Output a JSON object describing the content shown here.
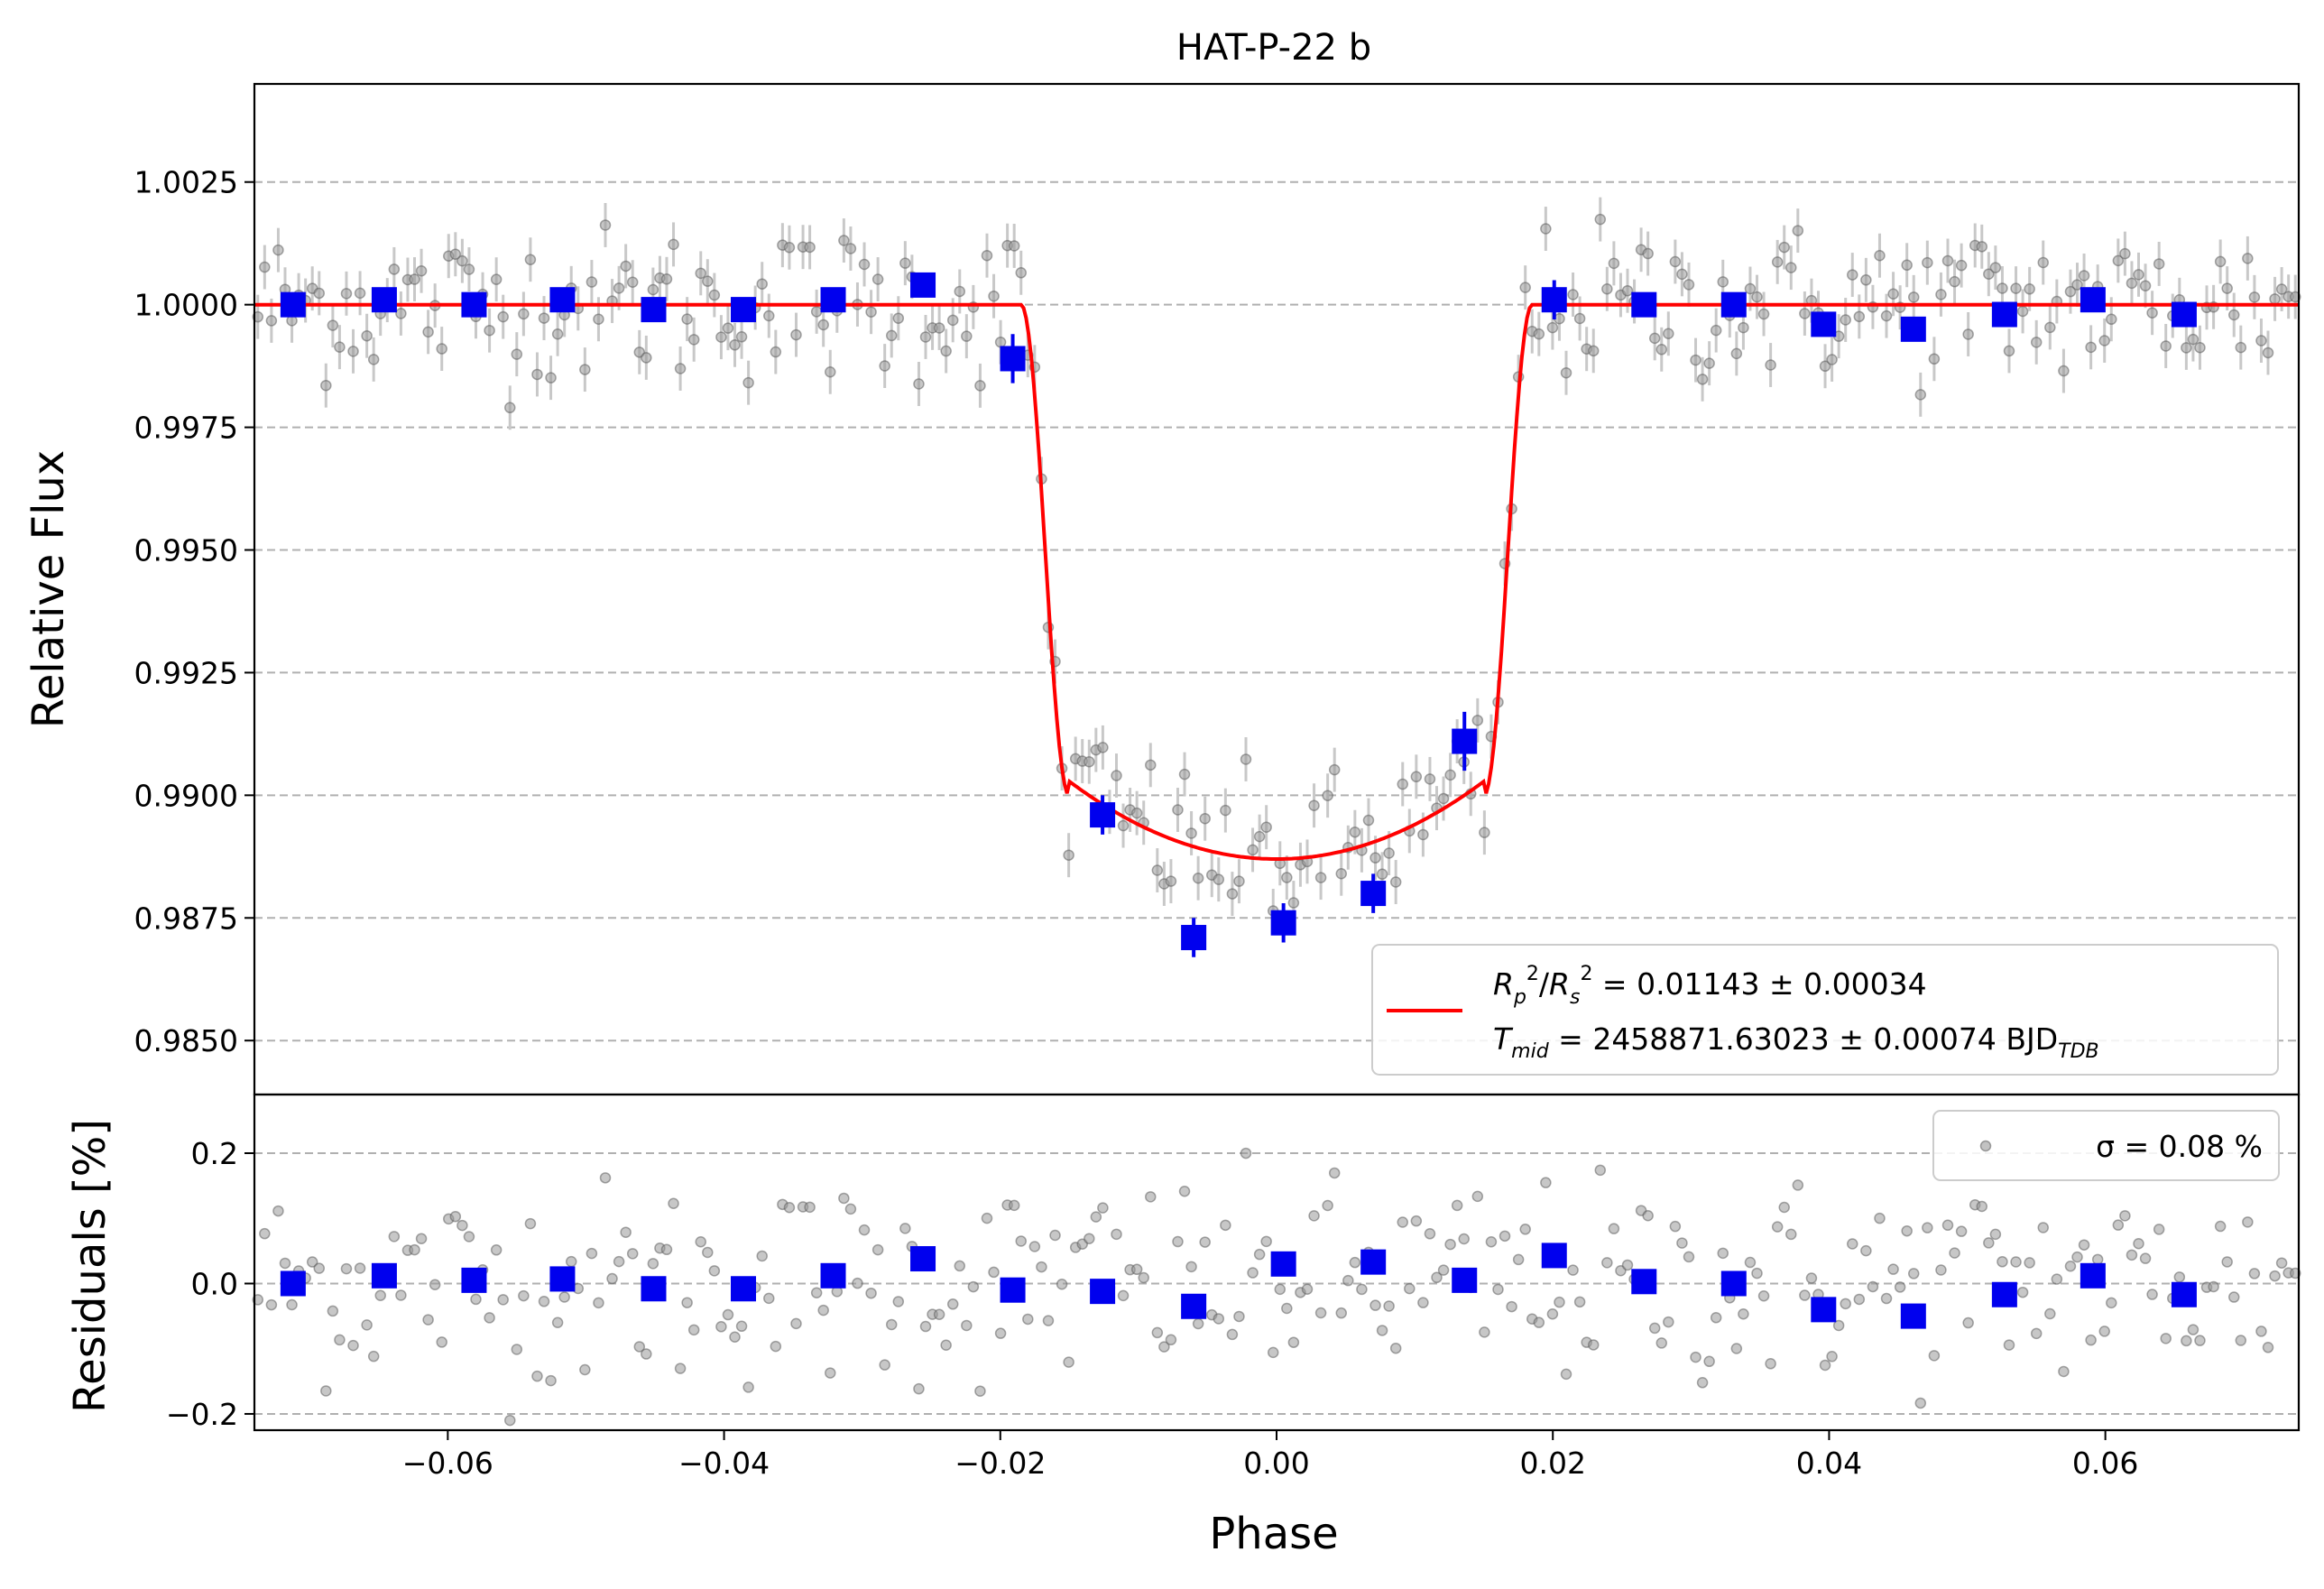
{
  "chart_data": [
    {
      "panel": "main",
      "type": "scatter",
      "title": "HAT-P-22 b",
      "xlabel": "",
      "ylabel": "Relative Flux",
      "xlim": [
        -0.074,
        0.074
      ],
      "ylim": [
        0.9839,
        1.0045
      ],
      "yticks": [
        "0.9850",
        "0.9875",
        "0.9900",
        "0.9925",
        "0.9950",
        "0.9975",
        "1.0000",
        "1.0025"
      ],
      "ytick_values": [
        0.985,
        0.9875,
        0.99,
        0.9925,
        0.995,
        0.9975,
        1.0,
        1.0025
      ],
      "grid": "y-dashed",
      "model_curve": {
        "color": "#ff0000",
        "description_points": {
          "x": [
            -0.074,
            -0.0185,
            -0.017,
            -0.016,
            -0.015,
            -0.014,
            -0.012,
            -0.008,
            -0.004,
            0.0,
            0.004,
            0.008,
            0.012,
            0.014,
            0.015,
            0.016,
            0.017,
            0.0185,
            0.074
          ],
          "y": [
            1.0,
            1.0,
            0.998,
            0.9955,
            0.9925,
            0.9902,
            0.9893,
            0.988,
            0.9873,
            0.98705,
            0.9873,
            0.988,
            0.9893,
            0.9902,
            0.9925,
            0.9955,
            0.998,
            1.0,
            1.0
          ]
        }
      },
      "binned_points": {
        "color": "#0000ee",
        "x": [
          -0.0712,
          -0.0646,
          -0.0581,
          -0.0517,
          -0.0451,
          -0.0386,
          -0.0321,
          -0.0256,
          -0.0191,
          -0.0126,
          -0.006,
          0.0005,
          0.007,
          0.0136,
          0.0201,
          0.0266,
          0.0331,
          0.0396,
          0.0461,
          0.0527,
          0.0591,
          0.0657
        ],
        "y": [
          1.0,
          1.0001,
          1.0,
          1.0001,
          0.9999,
          0.9999,
          1.0001,
          1.0004,
          0.9989,
          0.9896,
          0.9871,
          0.9874,
          0.988,
          0.9911,
          1.0001,
          1.0,
          1.0,
          0.9996,
          0.9995,
          0.9998,
          1.0001,
          0.9998
        ],
        "yerr": [
          0.0001,
          0.0001,
          0.0001,
          0.0001,
          0.0001,
          0.0001,
          0.0001,
          0.0001,
          0.0005,
          0.0004,
          0.0004,
          0.0004,
          0.0004,
          0.0006,
          0.0004,
          0.0001,
          0.0001,
          0.0001,
          0.0001,
          0.0001,
          0.0001,
          0.0001
        ]
      },
      "raw_points": {
        "color": "#808080",
        "count": 300,
        "error_bar": 0.0009
      },
      "legend": {
        "placement": "lower-right",
        "line1": "R_p^2/R_s^2 = 0.01143 ± 0.00034",
        "line2": "T_mid = 2458871.63023 ± 0.00074 BJD_TDB"
      }
    },
    {
      "panel": "residuals",
      "type": "scatter",
      "xlabel": "Phase",
      "ylabel": "Residuals [%]",
      "xlim": [
        -0.074,
        0.074
      ],
      "ylim": [
        -0.225,
        0.29
      ],
      "yticks": [
        "−0.2",
        "0.0",
        "0.2"
      ],
      "ytick_values": [
        -0.2,
        0.0,
        0.2
      ],
      "xticks": [
        "−0.06",
        "−0.04",
        "−0.02",
        "0.00",
        "0.02",
        "0.04",
        "0.06"
      ],
      "xtick_values": [
        -0.06,
        -0.04,
        -0.02,
        0.0,
        0.02,
        0.04,
        0.06
      ],
      "grid": "y-dashed",
      "binned_points": {
        "color": "#0000ee",
        "x": [
          -0.0712,
          -0.0646,
          -0.0581,
          -0.0517,
          -0.0451,
          -0.0386,
          -0.0321,
          -0.0256,
          -0.0191,
          -0.0126,
          -0.006,
          0.0005,
          0.007,
          0.0136,
          0.0201,
          0.0266,
          0.0331,
          0.0396,
          0.0461,
          0.0527,
          0.0591,
          0.0657
        ],
        "y": [
          0.0,
          0.012,
          0.005,
          0.007,
          -0.008,
          -0.008,
          0.012,
          0.038,
          -0.01,
          -0.012,
          -0.035,
          0.03,
          0.033,
          0.005,
          0.043,
          0.003,
          0.0,
          -0.04,
          -0.05,
          -0.017,
          0.012,
          -0.017
        ]
      },
      "legend": {
        "placement": "upper-right",
        "text": "σ = 0.08 %"
      }
    }
  ],
  "texts": {
    "title": "HAT-P-22 b",
    "main_ylabel": "Relative Flux",
    "resid_ylabel": "Residuals [%]",
    "xlabel": "Phase",
    "legend_eq1_value": " = 0.01143 ± 0.00034",
    "legend_eq2_value": " = 2458871.63023 ± 0.00074 BJD",
    "legend_eq2_sub": "TDB",
    "legend_mid_sub": "mid",
    "sigma_legend": "σ = 0.08 %"
  }
}
